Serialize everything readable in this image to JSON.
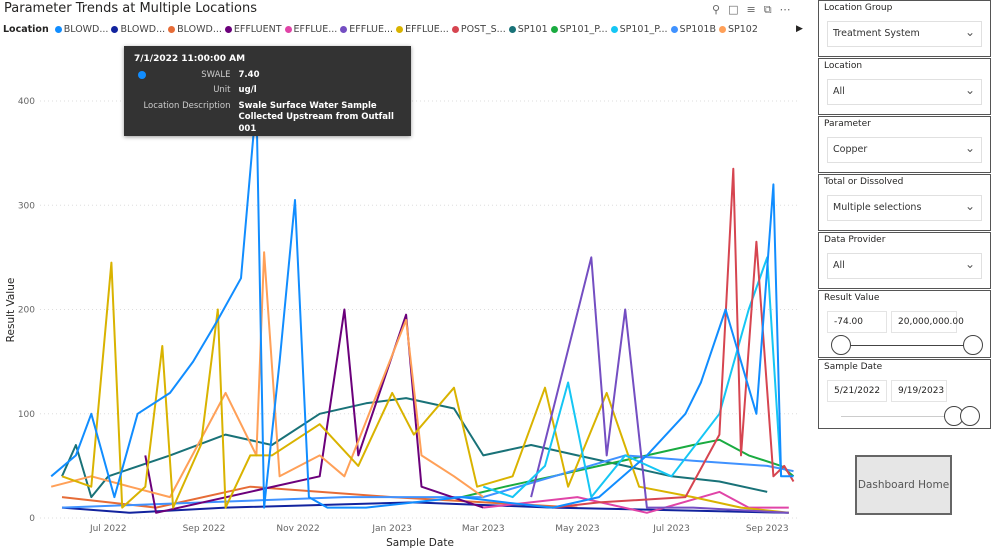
{
  "visual": {
    "title": "Parameter Trends at Multiple Locations",
    "legend_title": "Location",
    "icons": [
      "pin-icon",
      "copy-icon",
      "filter-icon",
      "focus-mode-icon",
      "more-options-icon"
    ]
  },
  "legend": [
    {
      "label": "BLOWD...",
      "color": "#118DFF"
    },
    {
      "label": "BLOWD...",
      "color": "#12239E"
    },
    {
      "label": "BLOWD...",
      "color": "#E66C37"
    },
    {
      "label": "EFFLUENT",
      "color": "#6B007B"
    },
    {
      "label": "EFFLUE...",
      "color": "#E044A7"
    },
    {
      "label": "EFFLUE...",
      "color": "#744EC2"
    },
    {
      "label": "EFFLUE...",
      "color": "#D9B300"
    },
    {
      "label": "POST_S...",
      "color": "#D64550"
    },
    {
      "label": "SP101",
      "color": "#197278"
    },
    {
      "label": "SP101_P...",
      "color": "#1AAB40"
    },
    {
      "label": "SP101_P...",
      "color": "#15C6F4"
    },
    {
      "label": "SP101B",
      "color": "#4092FF"
    },
    {
      "label": "SP102",
      "color": "#FFA058"
    }
  ],
  "tooltip": {
    "date": "7/1/2022 11:00:00 AM",
    "location": "SWALE",
    "value": "7.40",
    "unit_label": "Unit",
    "unit": "ug/l",
    "desc_label": "Location Description",
    "desc": "Swale Surface Water Sample Collected Upstream from Outfall 001",
    "color": "#118DFF"
  },
  "chart_data": {
    "type": "line",
    "xlabel": "Sample Date",
    "ylabel": "Result Value",
    "ylim": [
      0,
      400
    ],
    "yticks": [
      0,
      100,
      200,
      300,
      400
    ],
    "xrange": [
      "2022-05-21",
      "2023-09-19"
    ],
    "xticks": [
      {
        "label": "Jul 2022",
        "date": "2022-07-01"
      },
      {
        "label": "Sep 2022",
        "date": "2022-09-01"
      },
      {
        "label": "Nov 2022",
        "date": "2022-11-01"
      },
      {
        "label": "Jan 2023",
        "date": "2023-01-01"
      },
      {
        "label": "Mar 2023",
        "date": "2023-03-01"
      },
      {
        "label": "May 2023",
        "date": "2023-05-01"
      },
      {
        "label": "Jul 2023",
        "date": "2023-07-01"
      },
      {
        "label": "Sep 2023",
        "date": "2023-09-01"
      }
    ],
    "series": [
      {
        "name": "SP101",
        "color": "#197278",
        "points": [
          [
            "2022-06-01",
            40
          ],
          [
            "2022-06-10",
            70
          ],
          [
            "2022-06-20",
            20
          ],
          [
            "2022-07-01",
            40
          ],
          [
            "2022-08-10",
            60
          ],
          [
            "2022-09-15",
            80
          ],
          [
            "2022-10-15",
            70
          ],
          [
            "2022-11-15",
            100
          ],
          [
            "2022-12-15",
            110
          ],
          [
            "2023-01-10",
            115
          ],
          [
            "2023-02-10",
            105
          ],
          [
            "2023-03-01",
            60
          ],
          [
            "2023-04-01",
            70
          ],
          [
            "2023-05-01",
            60
          ],
          [
            "2023-06-01",
            50
          ],
          [
            "2023-07-01",
            40
          ],
          [
            "2023-08-01",
            35
          ],
          [
            "2023-09-01",
            25
          ]
        ]
      },
      {
        "name": "SP101_P",
        "color": "#1AAB40",
        "points": [
          [
            "2023-02-15",
            20
          ],
          [
            "2023-03-15",
            30
          ],
          [
            "2023-04-15",
            40
          ],
          [
            "2023-05-15",
            50
          ],
          [
            "2023-06-15",
            60
          ],
          [
            "2023-07-15",
            70
          ],
          [
            "2023-08-01",
            75
          ],
          [
            "2023-08-20",
            60
          ],
          [
            "2023-09-10",
            50
          ],
          [
            "2023-09-18",
            40
          ]
        ]
      },
      {
        "name": "BLOWD_3",
        "color": "#E66C37",
        "points": [
          [
            "2022-06-01",
            20
          ],
          [
            "2022-08-01",
            10
          ],
          [
            "2022-10-01",
            30
          ],
          [
            "2023-01-01",
            20
          ],
          [
            "2023-05-01",
            10
          ]
        ]
      },
      {
        "name": "BLOWD_2",
        "color": "#12239E",
        "points": [
          [
            "2022-06-01",
            10
          ],
          [
            "2022-07-15",
            5
          ],
          [
            "2022-09-15",
            10
          ],
          [
            "2023-01-15",
            15
          ],
          [
            "2023-04-15",
            10
          ],
          [
            "2023-09-15",
            5
          ]
        ]
      },
      {
        "name": "SP101B",
        "color": "#4092FF",
        "points": [
          [
            "2022-06-01",
            10
          ],
          [
            "2022-09-01",
            15
          ],
          [
            "2022-12-01",
            20
          ],
          [
            "2023-03-01",
            20
          ],
          [
            "2023-06-01",
            60
          ],
          [
            "2023-07-15",
            55
          ],
          [
            "2023-09-01",
            50
          ],
          [
            "2023-09-18",
            45
          ]
        ]
      },
      {
        "name": "EFFLUE_pink",
        "color": "#E044A7",
        "points": [
          [
            "2023-03-01",
            10
          ],
          [
            "2023-05-01",
            20
          ],
          [
            "2023-06-15",
            5
          ],
          [
            "2023-08-01",
            25
          ],
          [
            "2023-08-20",
            10
          ],
          [
            "2023-09-15",
            10
          ]
        ]
      },
      {
        "name": "EFFLUENT",
        "color": "#6B007B",
        "points": [
          [
            "2022-07-25",
            60
          ],
          [
            "2022-08-01",
            5
          ],
          [
            "2022-11-15",
            40
          ],
          [
            "2022-12-01",
            200
          ],
          [
            "2022-12-10",
            60
          ],
          [
            "2023-01-10",
            195
          ],
          [
            "2023-01-20",
            30
          ],
          [
            "2023-03-01",
            10
          ]
        ]
      },
      {
        "name": "SP102",
        "color": "#FFA058",
        "points": [
          [
            "2022-05-25",
            30
          ],
          [
            "2022-06-20",
            40
          ],
          [
            "2022-07-15",
            30
          ],
          [
            "2022-08-10",
            20
          ],
          [
            "2022-09-15",
            120
          ],
          [
            "2022-10-05",
            60
          ],
          [
            "2022-10-10",
            255
          ],
          [
            "2022-10-20",
            40
          ],
          [
            "2022-11-15",
            60
          ],
          [
            "2022-12-01",
            40
          ],
          [
            "2023-01-10",
            190
          ],
          [
            "2023-01-20",
            60
          ],
          [
            "2023-02-10",
            40
          ],
          [
            "2023-03-01",
            20
          ]
        ]
      },
      {
        "name": "EFFLUE_gold",
        "color": "#D9B300",
        "points": [
          [
            "2022-06-01",
            40
          ],
          [
            "2022-06-20",
            30
          ],
          [
            "2022-07-03",
            245
          ],
          [
            "2022-07-10",
            10
          ],
          [
            "2022-07-25",
            30
          ],
          [
            "2022-08-05",
            165
          ],
          [
            "2022-08-12",
            10
          ],
          [
            "2022-08-30",
            70
          ],
          [
            "2022-09-10",
            200
          ],
          [
            "2022-09-15",
            10
          ],
          [
            "2022-10-01",
            60
          ],
          [
            "2022-10-15",
            60
          ],
          [
            "2022-11-15",
            90
          ],
          [
            "2022-12-10",
            50
          ],
          [
            "2023-01-01",
            120
          ],
          [
            "2023-01-15",
            80
          ],
          [
            "2023-02-10",
            125
          ],
          [
            "2023-02-25",
            30
          ],
          [
            "2023-03-20",
            40
          ],
          [
            "2023-04-10",
            125
          ],
          [
            "2023-04-25",
            30
          ],
          [
            "2023-05-20",
            120
          ],
          [
            "2023-06-10",
            30
          ],
          [
            "2023-07-15",
            20
          ],
          [
            "2023-08-15",
            10
          ],
          [
            "2023-09-15",
            5
          ]
        ]
      },
      {
        "name": "EFFLUE_violet",
        "color": "#744EC2",
        "points": [
          [
            "2023-04-01",
            20
          ],
          [
            "2023-05-10",
            250
          ],
          [
            "2023-05-20",
            60
          ],
          [
            "2023-06-01",
            200
          ],
          [
            "2023-06-15",
            10
          ],
          [
            "2023-07-15",
            10
          ],
          [
            "2023-09-15",
            5
          ]
        ]
      },
      {
        "name": "SP101_P_cyan",
        "color": "#15C6F4",
        "points": [
          [
            "2023-03-01",
            30
          ],
          [
            "2023-03-20",
            20
          ],
          [
            "2023-04-10",
            50
          ],
          [
            "2023-04-25",
            130
          ],
          [
            "2023-05-10",
            20
          ],
          [
            "2023-06-01",
            60
          ],
          [
            "2023-07-01",
            40
          ],
          [
            "2023-08-01",
            100
          ],
          [
            "2023-08-20",
            200
          ],
          [
            "2023-09-01",
            250
          ],
          [
            "2023-09-10",
            40
          ]
        ]
      },
      {
        "name": "POST_S",
        "color": "#D64550",
        "points": [
          [
            "2023-04-15",
            10
          ],
          [
            "2023-05-15",
            15
          ],
          [
            "2023-07-10",
            20
          ],
          [
            "2023-08-01",
            80
          ],
          [
            "2023-08-10",
            335
          ],
          [
            "2023-08-15",
            60
          ],
          [
            "2023-08-25",
            265
          ],
          [
            "2023-09-05",
            40
          ],
          [
            "2023-09-12",
            50
          ],
          [
            "2023-09-18",
            35
          ]
        ]
      },
      {
        "name": "SWALE",
        "color": "#118DFF",
        "points": [
          [
            "2022-05-25",
            40
          ],
          [
            "2022-06-10",
            60
          ],
          [
            "2022-06-20",
            100
          ],
          [
            "2022-07-05",
            20
          ],
          [
            "2022-07-20",
            100
          ],
          [
            "2022-08-10",
            120
          ],
          [
            "2022-08-25",
            150
          ],
          [
            "2022-09-10",
            190
          ],
          [
            "2022-09-25",
            230
          ],
          [
            "2022-10-05",
            400
          ],
          [
            "2022-10-10",
            10
          ],
          [
            "2022-10-20",
            150
          ],
          [
            "2022-10-30",
            305
          ],
          [
            "2022-11-08",
            20
          ],
          [
            "2022-11-20",
            10
          ],
          [
            "2022-12-15",
            10
          ],
          [
            "2023-01-15",
            15
          ],
          [
            "2023-02-15",
            20
          ],
          [
            "2023-03-15",
            15
          ],
          [
            "2023-04-15",
            10
          ],
          [
            "2023-05-15",
            20
          ],
          [
            "2023-06-15",
            60
          ],
          [
            "2023-07-10",
            100
          ],
          [
            "2023-07-20",
            130
          ],
          [
            "2023-08-05",
            200
          ],
          [
            "2023-08-15",
            150
          ],
          [
            "2023-08-25",
            100
          ],
          [
            "2023-09-05",
            320
          ],
          [
            "2023-09-10",
            40
          ],
          [
            "2023-09-18",
            40
          ]
        ]
      }
    ]
  },
  "slicers": [
    {
      "title": "Location Group",
      "value": "Treatment System"
    },
    {
      "title": "Location",
      "value": "All"
    },
    {
      "title": "Parameter",
      "value": "Copper"
    },
    {
      "title": "Total or Dissolved",
      "value": "Multiple selections"
    },
    {
      "title": "Data Provider",
      "value": "All"
    }
  ],
  "result_value": {
    "title": "Result Value",
    "min": "-74.00",
    "max": "20,000,000.00"
  },
  "sample_date": {
    "title": "Sample Date",
    "start": "5/21/2022",
    "end": "9/19/2023"
  },
  "home_button": "Dashboard Home"
}
